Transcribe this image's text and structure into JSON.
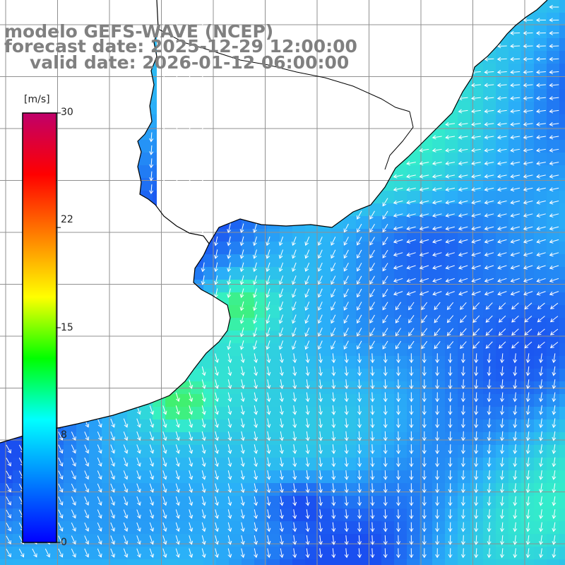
{
  "title": {
    "model": "modelo GEFS-WAVE (NCEP)",
    "forecast": "forecast date: 2025-12-29 12:00:00",
    "valid": "valid date: 2026-01-12 06:00:00"
  },
  "colorbar": {
    "unit": "[m/s]",
    "min": 0,
    "max": 30,
    "tick_labels": [
      "30",
      "22",
      "15",
      "8",
      "0"
    ],
    "tick_values": [
      30,
      22,
      15,
      8,
      0
    ],
    "colors": [
      "#0000ff",
      "#0080ff",
      "#00ffff",
      "#00ff00",
      "#ffff00",
      "#ff8000",
      "#ff0000",
      "#c0006a"
    ]
  },
  "map": {
    "variable": "wind speed and direction",
    "ocean_color_low": "#1a4ff0",
    "ocean_color_high": "#34f0c0",
    "land_color": "#ffffff",
    "coastline_color": "#000000",
    "grid_color": "#909090",
    "arrow_color": "#ffffff"
  }
}
